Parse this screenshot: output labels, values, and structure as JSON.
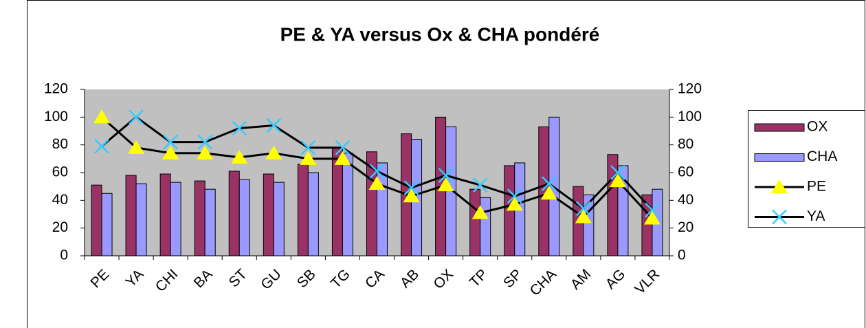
{
  "chart_data": {
    "type": "bar",
    "title": "PE & YA versus Ox & CHA pondéré",
    "categories": [
      "PE",
      "YA",
      "CHI",
      "BA",
      "ST",
      "GU",
      "SB",
      "TG",
      "CA",
      "AB",
      "OX",
      "TP",
      "SP",
      "CHA",
      "AM",
      "AG",
      "VLR"
    ],
    "series": [
      {
        "name": "OX",
        "type": "bar",
        "color": "#993366",
        "values": [
          51,
          58,
          59,
          54,
          61,
          59,
          66,
          78,
          75,
          88,
          100,
          48,
          65,
          93,
          50,
          73,
          44
        ]
      },
      {
        "name": "CHA",
        "type": "bar",
        "color": "#9999ff",
        "values": [
          45,
          52,
          53,
          48,
          55,
          53,
          60,
          74,
          67,
          84,
          93,
          42,
          67,
          100,
          44,
          65,
          48
        ]
      },
      {
        "name": "PE",
        "type": "line",
        "axis": "y2",
        "color": "#000000",
        "marker": "triangle",
        "marker_color": "#ffff00",
        "values": [
          100,
          78,
          74,
          74,
          71,
          74,
          70,
          70,
          52,
          43,
          51,
          31,
          37,
          45,
          28,
          54,
          27
        ]
      },
      {
        "name": "YA",
        "type": "line",
        "axis": "y2",
        "color": "#000000",
        "marker": "x",
        "marker_color": "#33ccff",
        "values": [
          79,
          100,
          82,
          82,
          92,
          94,
          78,
          78,
          61,
          49,
          58,
          51,
          43,
          52,
          34,
          60,
          33
        ]
      }
    ],
    "ylim": [
      0,
      120
    ],
    "yticks": [
      0,
      20,
      40,
      60,
      80,
      100,
      120
    ],
    "y2lim": [
      0,
      120
    ],
    "y2ticks": [
      0,
      20,
      40,
      60,
      80,
      100,
      120
    ],
    "legend": "right",
    "plot_background": "#c0c0c0"
  }
}
